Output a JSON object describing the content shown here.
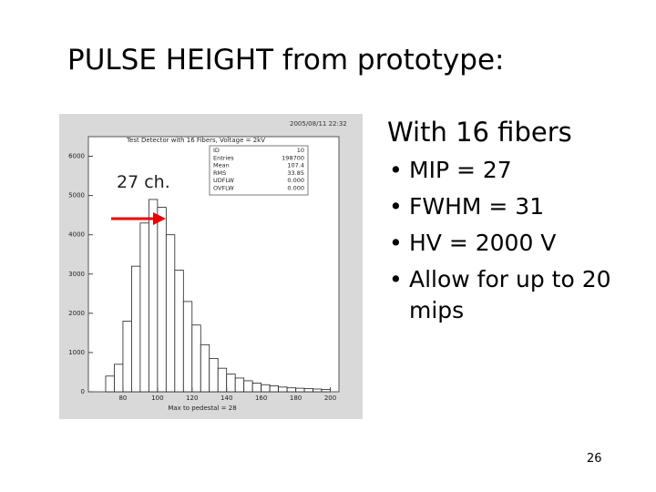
{
  "title": "PULSE HEIGHT from prototype:",
  "plot": {
    "type": "histogram",
    "timestamp": "2005/08/11   22:32",
    "title": "Test Detector with 16 Fibers, Voltage = 2kV",
    "stats": [
      [
        "ID",
        "10"
      ],
      [
        "Entries",
        "198700"
      ],
      [
        "Mean",
        "107.4"
      ],
      [
        "RMS",
        "33.85"
      ],
      [
        "UDFLW",
        "0.000"
      ],
      [
        "OVFLW",
        "0.000"
      ]
    ],
    "xlabel": "Max to pedestal = 28",
    "bins": [
      70,
      75,
      80,
      85,
      90,
      95,
      100,
      105,
      110,
      115,
      120,
      125,
      130,
      135,
      140,
      145,
      150,
      155,
      160,
      165,
      170,
      175,
      180,
      185,
      190,
      195,
      200
    ],
    "counts": [
      400,
      700,
      1800,
      3200,
      4300,
      4900,
      4700,
      4000,
      3100,
      2300,
      1700,
      1200,
      850,
      600,
      450,
      350,
      280,
      220,
      180,
      150,
      120,
      100,
      90,
      80,
      70,
      60
    ],
    "xlim": [
      60,
      205
    ],
    "ylim": [
      0,
      6500
    ],
    "xticks": [
      80,
      100,
      120,
      140,
      160,
      180,
      200
    ],
    "yticks": [
      0,
      1000,
      2000,
      3000,
      4000,
      5000,
      6000
    ]
  },
  "annotation": "27 ch.",
  "subtitle": "With 16 fibers",
  "bullets": [
    "MIP = 27",
    "FWHM = 31",
    "HV = 2000 V",
    "Allow for up to 20 mips"
  ],
  "page_number": "26"
}
